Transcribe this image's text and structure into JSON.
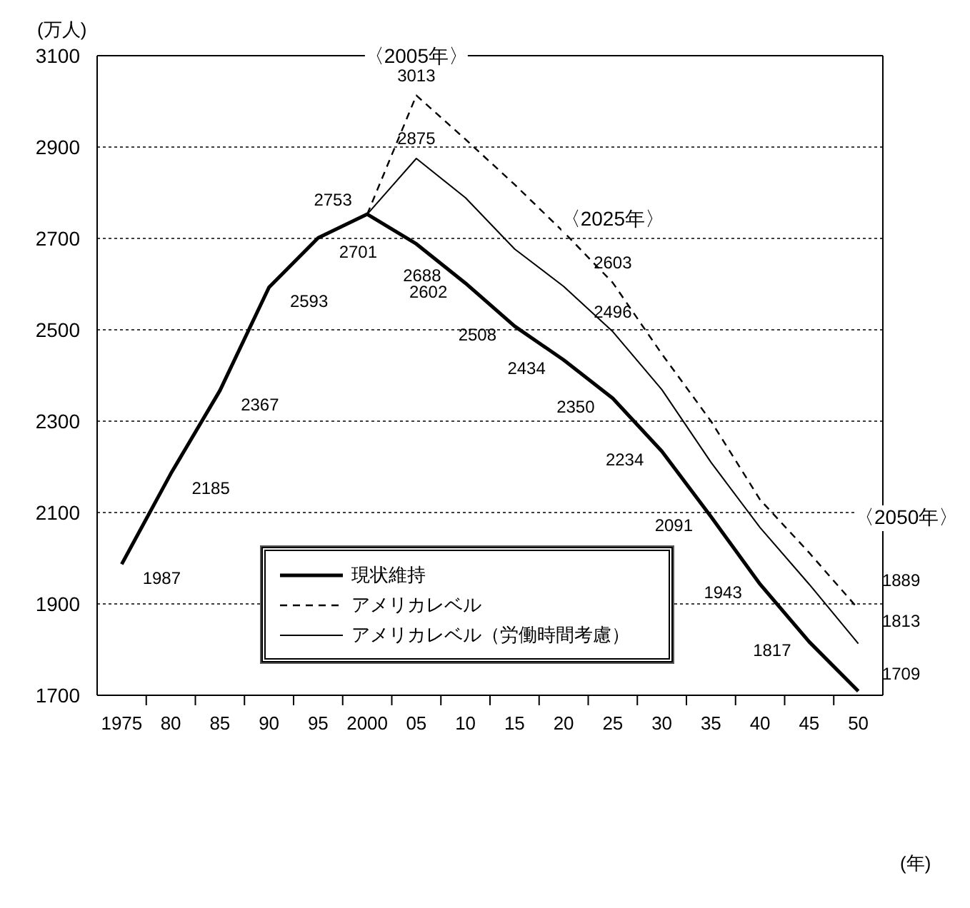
{
  "chart_data": {
    "type": "line",
    "ylabel": "(万人)",
    "x": [
      1975,
      1980,
      1985,
      1990,
      1995,
      2000,
      2005,
      2010,
      2015,
      2020,
      2025,
      2030,
      2035,
      2040,
      2045,
      2050
    ],
    "series": [
      {
        "name": "現状維持",
        "color": "#000000",
        "line_style": "solid",
        "values": [
          1987,
          2185,
          2367,
          2593,
          2701,
          2753,
          2688,
          2602,
          2508,
          2434,
          2350,
          2234,
          2091,
          1943,
          1817,
          1709
        ],
        "value_labels": [
          "1987",
          "2185",
          "2367",
          "2593",
          "2701",
          "2753",
          "2688",
          "2602",
          "2508",
          "2434",
          "2350",
          "2234",
          "2091",
          "1943",
          "1817",
          "1709"
        ]
      },
      {
        "name": "アメリカレベル",
        "color": "#000000",
        "line_style": "dashed",
        "x": [
          2000,
          2005,
          2010,
          2015,
          2020,
          2025,
          2030,
          2035,
          2040,
          2045,
          2050
        ],
        "values": [
          2753,
          3013,
          2917,
          2818,
          2714,
          2603,
          2447,
          2300,
          2128,
          2012,
          1889
        ],
        "value_labels": [
          null,
          "3013",
          null,
          null,
          null,
          "2603",
          null,
          null,
          null,
          null,
          "1889"
        ]
      },
      {
        "name": "アメリカレベル（労働時間考慮）",
        "color": "#000000",
        "line_style": "solid",
        "x": [
          2000,
          2005,
          2010,
          2015,
          2020,
          2025,
          2030,
          2035,
          2040,
          2045,
          2050
        ],
        "values": [
          2753,
          2875,
          2789,
          2677,
          2595,
          2496,
          2369,
          2210,
          2067,
          1943,
          1813
        ],
        "value_labels": [
          null,
          "2875",
          null,
          null,
          null,
          "2496",
          null,
          null,
          null,
          null,
          "1813"
        ]
      }
    ],
    "xlim": [
      1972.5,
      2052.5
    ],
    "xticks": [
      {
        "value": 1975,
        "label": "1975"
      },
      {
        "value": 1980,
        "label": "80"
      },
      {
        "value": 1985,
        "label": "85"
      },
      {
        "value": 1990,
        "label": "90"
      },
      {
        "value": 1995,
        "label": "95"
      },
      {
        "value": 2000,
        "label": "2000"
      },
      {
        "value": 2005,
        "label": "05"
      },
      {
        "value": 2010,
        "label": "10"
      },
      {
        "value": 2015,
        "label": "15"
      },
      {
        "value": 2020,
        "label": "20"
      },
      {
        "value": 2025,
        "label": "25"
      },
      {
        "value": 2030,
        "label": "30"
      },
      {
        "value": 2035,
        "label": "35"
      },
      {
        "value": 2040,
        "label": "40"
      },
      {
        "value": 2045,
        "label": "45"
      },
      {
        "value": 2050,
        "label": "50"
      },
      {
        "value": 1977.5,
        "label": null
      },
      {
        "value": 1982.5,
        "label": null
      },
      {
        "value": 1987.5,
        "label": null
      },
      {
        "value": 1992.5,
        "label": null
      },
      {
        "value": 1997.5,
        "label": null
      },
      {
        "value": 2002.5,
        "label": null
      },
      {
        "value": 2007.5,
        "label": null
      },
      {
        "value": 2012.5,
        "label": null
      },
      {
        "value": 2017.5,
        "label": null
      },
      {
        "value": 2022.5,
        "label": null
      },
      {
        "value": 2027.5,
        "label": null
      },
      {
        "value": 2032.5,
        "label": null
      },
      {
        "value": 2037.5,
        "label": null
      },
      {
        "value": 2042.5,
        "label": null
      },
      {
        "value": 2047.5,
        "label": null
      }
    ],
    "ylim": [
      1700,
      3100
    ],
    "yticks": [
      1700,
      1900,
      2100,
      2300,
      2500,
      2700,
      2900,
      3100
    ],
    "grid": "y",
    "legend": "bottom",
    "marker": "none",
    "annotations": [
      {
        "text": "〈2005年〉",
        "x": 2005,
        "y": 3013
      },
      {
        "text": "〈2025年〉",
        "x": 2025,
        "y": 2603
      },
      "〈2050年〉",
      "(年)"
    ]
  }
}
